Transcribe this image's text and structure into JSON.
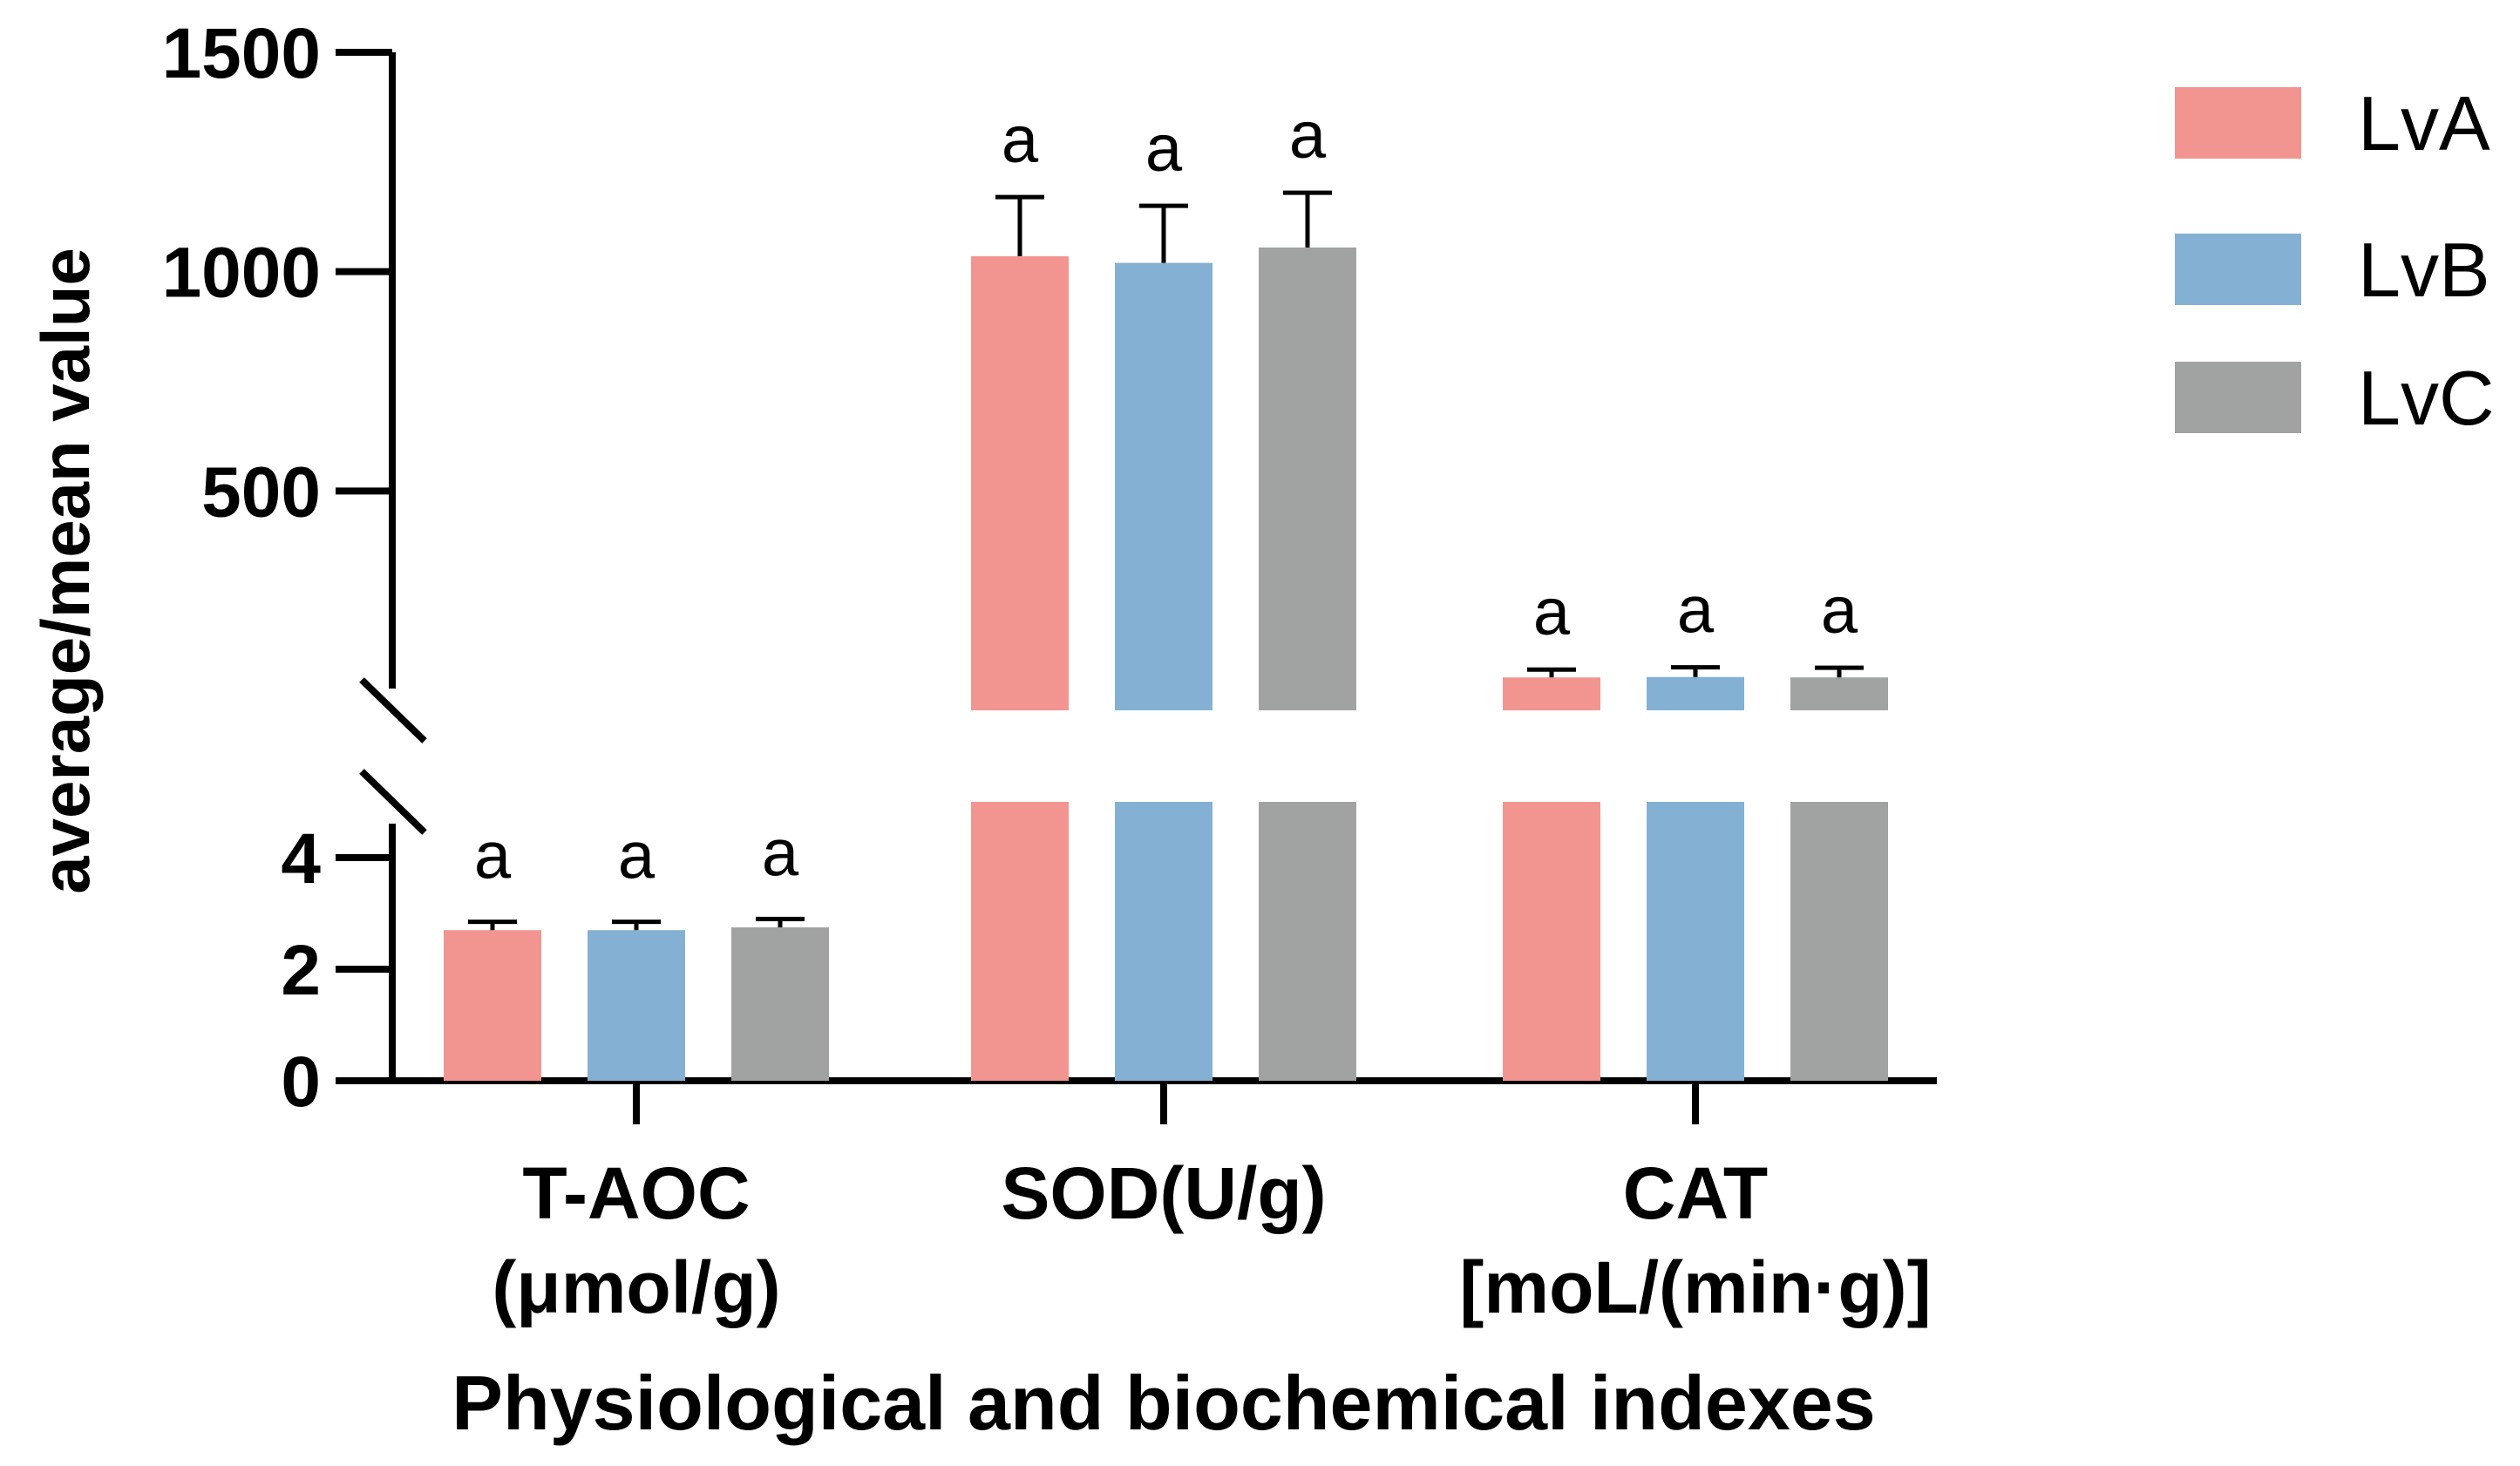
{
  "chart_data": {
    "type": "bar",
    "title": "",
    "xlabel": "Physiological and biochemical indexes",
    "ylabel": "average/mean value",
    "categories": [
      {
        "lines": [
          "T-AOC",
          "(μmol/g)"
        ]
      },
      {
        "lines": [
          "SOD(U/g)"
        ]
      },
      {
        "lines": [
          "CAT",
          "[moL/(min·g)]"
        ]
      }
    ],
    "series": [
      {
        "name": "LvA",
        "color": "#F29590",
        "values": [
          2.7,
          1035,
          75
        ],
        "errors": [
          0.15,
          135,
          18
        ]
      },
      {
        "name": "LvB",
        "color": "#84B1D3",
        "values": [
          2.7,
          1020,
          76
        ],
        "errors": [
          0.15,
          130,
          22
        ]
      },
      {
        "name": "LvC",
        "color": "#A1A3A2",
        "values": [
          2.75,
          1055,
          75
        ],
        "errors": [
          0.15,
          125,
          22
        ]
      }
    ],
    "significance": [
      [
        "a",
        "a",
        "a"
      ],
      [
        "a",
        "a",
        "a"
      ],
      [
        "a",
        "a",
        "a"
      ]
    ],
    "axis_break": {
      "lower_range": [
        0,
        5
      ],
      "upper_range": [
        0,
        1500
      ]
    },
    "yticks_lower": [
      "0",
      "2",
      "4"
    ],
    "yticks_upper": [
      "500",
      "1000",
      "1500"
    ],
    "legend_position": "top-right"
  }
}
